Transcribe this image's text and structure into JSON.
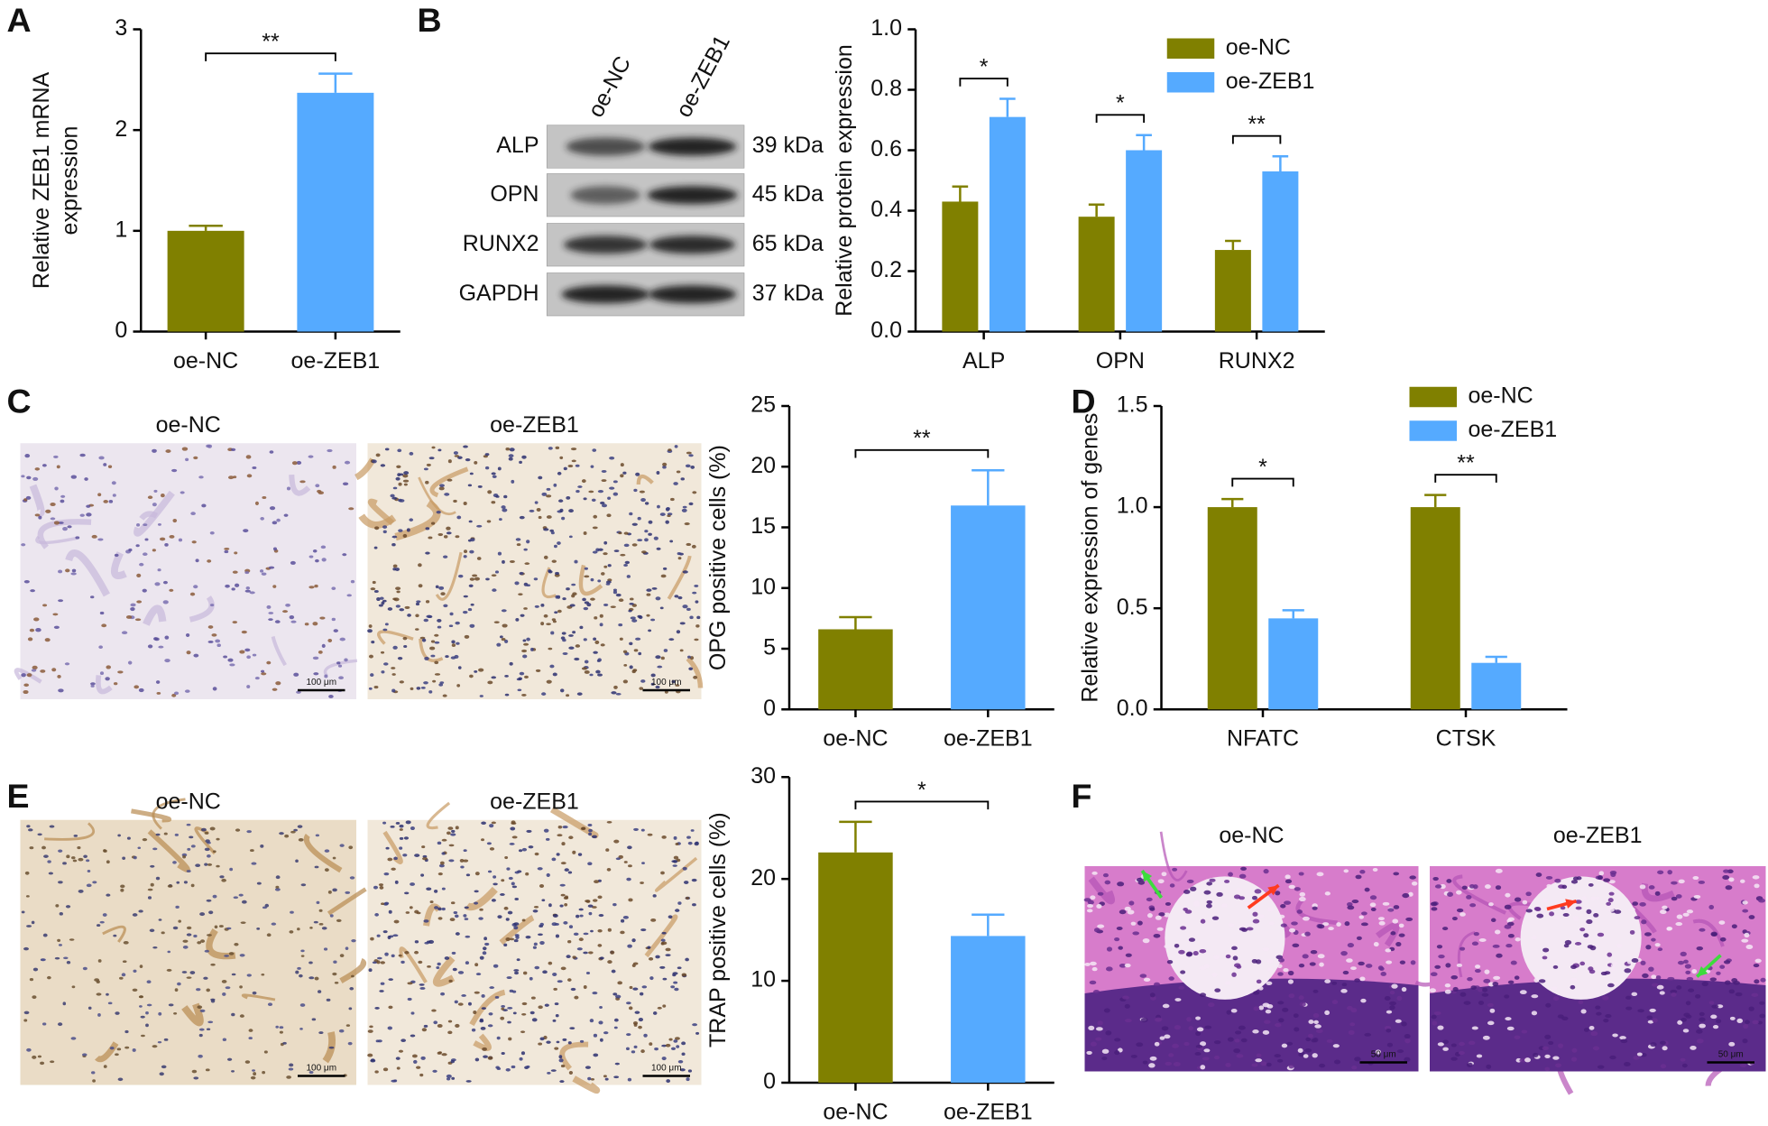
{
  "panel_labels": [
    "A",
    "B",
    "C",
    "D",
    "E",
    "F"
  ],
  "blot": {
    "columns": [
      "oe-NC",
      "oe-ZEB1"
    ],
    "rows": [
      {
        "protein": "ALP",
        "size": "39 kDa"
      },
      {
        "protein": "OPN",
        "size": "45 kDa"
      },
      {
        "protein": "RUNX2",
        "size": "65 kDa"
      },
      {
        "protein": "GAPDH",
        "size": "37 kDa"
      }
    ]
  },
  "micrographs": [
    {
      "titles": [
        "oe-NC",
        "oe-ZEB1"
      ],
      "scale_bar": "100 μm"
    },
    {
      "titles": [
        "oe-NC",
        "oe-ZEB1"
      ],
      "scale_bar": "100 μm"
    },
    {
      "titles": [
        "oe-NC",
        "oe-ZEB1"
      ],
      "scale_bar": "50 μm"
    }
  ],
  "chart_data": [
    {
      "type": "bar",
      "ylabel": [
        "Relative ZEB1 mRNA",
        "expression"
      ],
      "categories": [
        "oe-NC",
        "oe-ZEB1"
      ],
      "values": [
        1.0,
        2.37
      ],
      "errors": [
        0.05,
        0.19
      ],
      "colors": [
        "#808000",
        "#55aaff"
      ],
      "ylim": [
        0,
        3
      ],
      "yticks": [
        0,
        1,
        2,
        3
      ],
      "significance": "**"
    },
    {
      "type": "grouped_bar",
      "ylabel": [
        "Relative protein expression"
      ],
      "categories": [
        "ALP",
        "OPN",
        "RUNX2"
      ],
      "series": [
        {
          "name": "oe-NC",
          "color": "#808000",
          "values": [
            0.43,
            0.38,
            0.27
          ],
          "errors": [
            0.05,
            0.04,
            0.03
          ]
        },
        {
          "name": "oe-ZEB1",
          "color": "#55aaff",
          "values": [
            0.71,
            0.6,
            0.53
          ],
          "errors": [
            0.06,
            0.05,
            0.05
          ]
        }
      ],
      "ylim": [
        0,
        1
      ],
      "yticks": [
        {
          "value": 0,
          "label": "0.0"
        },
        0.2,
        0.4,
        0.6,
        0.8,
        {
          "value": 1,
          "label": "1.0"
        }
      ],
      "significance": [
        "*",
        "*",
        "**"
      ],
      "legend": "upper right"
    },
    {
      "type": "bar",
      "ylabel": [
        "OPG positive cells (%)"
      ],
      "categories": [
        "oe-NC",
        "oe-ZEB1"
      ],
      "values": [
        6.6,
        16.8
      ],
      "errors": [
        1.0,
        2.9
      ],
      "colors": [
        "#808000",
        "#55aaff"
      ],
      "ylim": [
        0,
        25
      ],
      "yticks": [
        0,
        5,
        10,
        15,
        20,
        25
      ],
      "significance": "**"
    },
    {
      "type": "grouped_bar",
      "ylabel": [
        "Relative expression of genes"
      ],
      "categories": [
        "NFATC",
        "CTSK"
      ],
      "series": [
        {
          "name": "oe-NC",
          "color": "#808000",
          "values": [
            1.0,
            1.0
          ],
          "errors": [
            0.04,
            0.06
          ]
        },
        {
          "name": "oe-ZEB1",
          "color": "#55aaff",
          "values": [
            0.45,
            0.23
          ],
          "errors": [
            0.04,
            0.03
          ]
        }
      ],
      "ylim": [
        0,
        1.5
      ],
      "yticks": [
        {
          "value": 0,
          "label": "0.0"
        },
        0.5,
        {
          "value": 1,
          "label": "1.0"
        },
        1.5
      ],
      "significance": [
        "*",
        "**"
      ],
      "legend": "upper right"
    },
    {
      "type": "bar",
      "ylabel": [
        "TRAP positive cells (%)"
      ],
      "categories": [
        "oe-NC",
        "oe-ZEB1"
      ],
      "values": [
        22.6,
        14.4
      ],
      "errors": [
        3.0,
        2.1
      ],
      "colors": [
        "#808000",
        "#55aaff"
      ],
      "ylim": [
        0,
        30
      ],
      "yticks": [
        0,
        10,
        20,
        30
      ],
      "significance": "*"
    }
  ]
}
